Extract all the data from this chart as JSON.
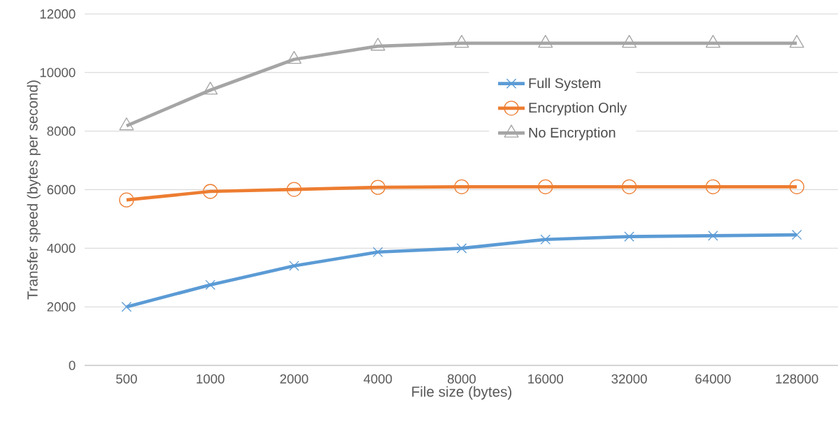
{
  "chart_data": {
    "type": "line",
    "xlabel": "File size (bytes)",
    "ylabel": "Transfer speed (bytes per second)",
    "categories": [
      "500",
      "1000",
      "2000",
      "4000",
      "8000",
      "16000",
      "32000",
      "64000",
      "128000"
    ],
    "series": [
      {
        "name": "Full System",
        "color": "#5b9bd5",
        "marker": "cross",
        "values": [
          2000,
          2750,
          3400,
          3870,
          4000,
          4300,
          4400,
          4430,
          4460
        ]
      },
      {
        "name": "Encryption Only",
        "color": "#ed7d31",
        "marker": "circle",
        "values": [
          5650,
          5940,
          6010,
          6080,
          6100,
          6100,
          6100,
          6100,
          6100
        ]
      },
      {
        "name": "No Encryption",
        "color": "#a5a5a5",
        "marker": "triangle",
        "values": [
          8180,
          9400,
          10450,
          10900,
          11000,
          11000,
          11000,
          11000,
          11000
        ]
      }
    ],
    "ylim": [
      0,
      12000
    ],
    "yticks": [
      0,
      2000,
      4000,
      6000,
      8000,
      10000,
      12000
    ],
    "grid": "y",
    "legend": "top right",
    "line_style": "solid"
  }
}
